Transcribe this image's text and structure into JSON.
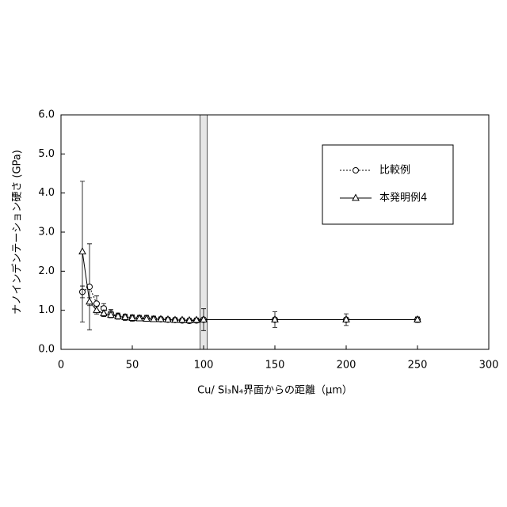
{
  "chart_data": {
    "type": "line",
    "x_label": "Cu/ Si₃N₄界面からの距離（μm）",
    "y_label": "ナノインデンテーション硬さ (GPa)",
    "x": [
      15,
      20,
      25,
      30,
      35,
      40,
      45,
      50,
      55,
      60,
      65,
      70,
      75,
      80,
      85,
      90,
      95,
      100,
      150,
      200,
      250
    ],
    "series": [
      {
        "name": "比較例",
        "color": "#000000",
        "line": "dotted",
        "marker": "circle",
        "values": [
          1.47,
          1.6,
          1.17,
          1.05,
          0.92,
          0.85,
          0.82,
          0.8,
          0.8,
          0.8,
          0.78,
          0.77,
          0.76,
          0.75,
          0.74,
          0.73,
          0.74,
          0.76,
          0.76,
          0.76,
          0.76
        ],
        "errors": [
          0.15,
          1.1,
          0.2,
          0.12,
          0.1,
          0.08,
          0.08,
          0.08,
          0.07,
          0.07,
          0.07,
          0.06,
          0.06,
          0.06,
          0.06,
          0.06,
          0.06,
          0.28,
          0.2,
          0.15,
          0.07
        ]
      },
      {
        "name": "本発明例4",
        "color": "#000000",
        "line": "solid",
        "marker": "triangle",
        "values": [
          2.5,
          1.22,
          1.0,
          0.92,
          0.88,
          0.84,
          0.82,
          0.8,
          0.79,
          0.78,
          0.77,
          0.77,
          0.76,
          0.75,
          0.75,
          0.74,
          0.75,
          0.76,
          0.76,
          0.76,
          0.76
        ],
        "errors": [
          1.8,
          0.1,
          0.1,
          0.08,
          0.07,
          0.06,
          0.06,
          0.06,
          0.05,
          0.05,
          0.05,
          0.05,
          0.05,
          0.05,
          0.05,
          0.05,
          0.05,
          0.05,
          0.05,
          0.05,
          0.05
        ]
      }
    ],
    "shaded_region": [
      97.5,
      102.5
    ],
    "xlim": [
      0,
      300
    ],
    "xticks": [
      0,
      50,
      100,
      150,
      200,
      250,
      300
    ],
    "ylim": [
      0,
      6
    ],
    "yticks": [
      {
        "value": 0,
        "label": "0.0"
      },
      {
        "value": 1,
        "label": "1.0"
      },
      {
        "value": 2,
        "label": "2.0"
      },
      {
        "value": 3,
        "label": "3.0"
      },
      {
        "value": 4,
        "label": "4.0"
      },
      {
        "value": 5,
        "label": "5.0"
      },
      {
        "value": 6,
        "label": "6.0"
      }
    ],
    "legend": "upper right"
  }
}
